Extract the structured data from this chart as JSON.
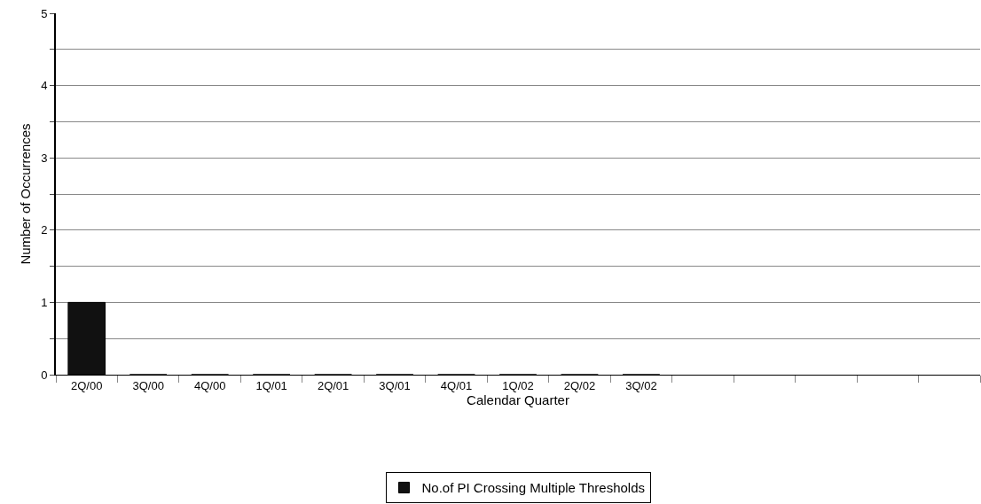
{
  "chart_data": {
    "type": "bar",
    "xlabel": "Calendar Quarter",
    "ylabel": "Number of Occurrences",
    "categories": [
      "2Q/00",
      "3Q/00",
      "4Q/00",
      "1Q/01",
      "2Q/01",
      "3Q/01",
      "4Q/01",
      "1Q/02",
      "2Q/02",
      "3Q/02",
      null,
      null,
      null,
      null,
      null
    ],
    "series": [
      {
        "name": "No.of PI Crossing Multiple Thresholds",
        "color": "#111111",
        "values": [
          1,
          0,
          0,
          0,
          0,
          0,
          0,
          0,
          0,
          0,
          null,
          null,
          null,
          null,
          null
        ]
      }
    ],
    "ylim": [
      0,
      5
    ],
    "yticks": [
      0,
      {
        "value": 0.5,
        "label": null
      },
      1,
      {
        "value": 1.5,
        "label": null
      },
      2,
      {
        "value": 2.5,
        "label": null
      },
      3,
      {
        "value": 3.5,
        "label": null
      },
      4,
      {
        "value": 4.5,
        "label": null
      },
      5
    ],
    "grid": "y",
    "legend": "bottom"
  }
}
